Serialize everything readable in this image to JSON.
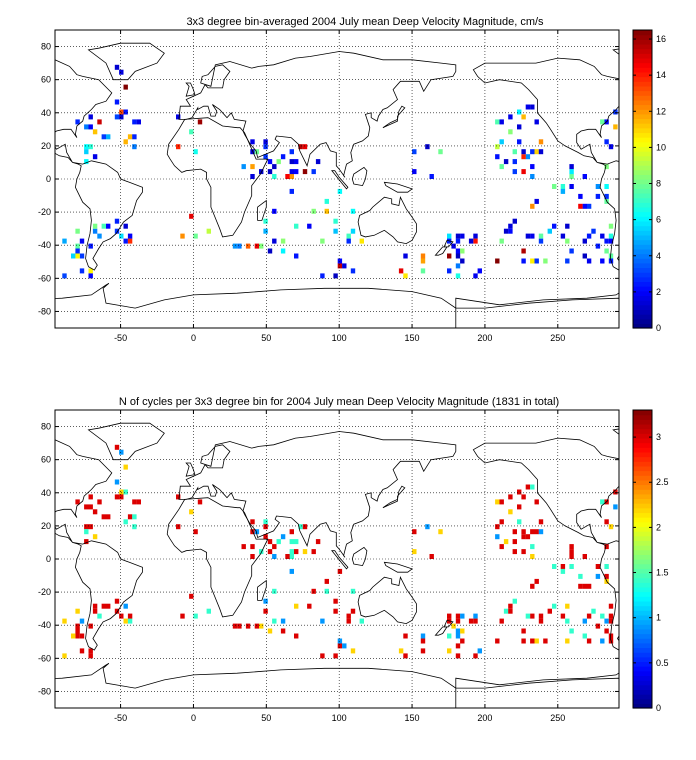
{
  "chart_data": [
    {
      "type": "heatmap",
      "title": "3x3 degree bin-averaged 2004 July mean Deep Velocity Magnitude, cm/s",
      "xlim": [
        -95,
        292
      ],
      "ylim": [
        -90,
        90
      ],
      "xticks": [
        -50,
        0,
        50,
        100,
        150,
        200,
        250
      ],
      "yticks": [
        -80,
        -60,
        -40,
        -20,
        0,
        20,
        40,
        60,
        80
      ],
      "grid": true,
      "colormap": "jet",
      "colorbar": {
        "range": [
          0,
          16.5
        ],
        "ticks": [
          0,
          2,
          4,
          6,
          8,
          10,
          12,
          14,
          16
        ]
      },
      "value_profile": "velocity"
    },
    {
      "type": "heatmap",
      "title": "N of cycles per 3x3 degree bin for 2004 July mean Deep Velocity Magnitude (1831 in total)",
      "xlim": [
        -95,
        292
      ],
      "ylim": [
        -90,
        90
      ],
      "xticks": [
        -50,
        0,
        50,
        100,
        150,
        200,
        250
      ],
      "yticks": [
        -80,
        -60,
        -40,
        -20,
        0,
        20,
        40,
        60,
        80
      ],
      "grid": true,
      "colormap": "jet",
      "colorbar": {
        "range": [
          0,
          3.3
        ],
        "ticks": [
          0,
          0.5,
          1,
          1.5,
          2,
          2.5,
          3
        ]
      },
      "value_profile": "cycles"
    }
  ],
  "clusters": [
    [
      -88,
      -70,
      -60,
      -30,
      14
    ],
    [
      -80,
      -62,
      10,
      40,
      16
    ],
    [
      -60,
      -35,
      15,
      42,
      12
    ],
    [
      -70,
      -40,
      -38,
      -26,
      12
    ],
    [
      -55,
      -45,
      40,
      70,
      5
    ],
    [
      -15,
      10,
      -35,
      -20,
      4
    ],
    [
      -20,
      5,
      10,
      40,
      5
    ],
    [
      35,
      90,
      0,
      25,
      30
    ],
    [
      40,
      110,
      -60,
      -5,
      25
    ],
    [
      20,
      60,
      -45,
      -35,
      6
    ],
    [
      100,
      120,
      -40,
      -20,
      3
    ],
    [
      140,
      160,
      -60,
      -45,
      6
    ],
    [
      170,
      200,
      -60,
      -30,
      18
    ],
    [
      190,
      290,
      -50,
      -25,
      40
    ],
    [
      200,
      240,
      5,
      45,
      30
    ],
    [
      230,
      285,
      -20,
      15,
      22
    ],
    [
      280,
      292,
      20,
      40,
      6
    ],
    [
      150,
      180,
      0,
      20,
      6
    ]
  ],
  "land": [
    [
      [
        -168,
        66
      ],
      [
        -160,
        70
      ],
      [
        -140,
        70
      ],
      [
        -125,
        70
      ],
      [
        -110,
        73
      ],
      [
        -95,
        72
      ],
      [
        -85,
        68
      ],
      [
        -80,
        63
      ],
      [
        -76,
        62
      ],
      [
        -65,
        60
      ],
      [
        -56,
        52
      ],
      [
        -60,
        47
      ],
      [
        -67,
        45
      ],
      [
        -70,
        42
      ],
      [
        -75,
        38
      ],
      [
        -76,
        35
      ],
      [
        -80,
        32
      ],
      [
        -81,
        27
      ],
      [
        -80,
        25
      ],
      [
        -84,
        30
      ],
      [
        -89,
        30
      ],
      [
        -94,
        29
      ],
      [
        -97,
        27
      ],
      [
        -97,
        22
      ],
      [
        -94,
        18
      ],
      [
        -88,
        21
      ],
      [
        -87,
        16
      ],
      [
        -83,
        10
      ],
      [
        -79,
        9
      ],
      [
        -77,
        8
      ],
      [
        -78,
        4
      ],
      [
        -80,
        0
      ],
      [
        -81,
        -5
      ],
      [
        -76,
        -14
      ],
      [
        -71,
        -18
      ],
      [
        -70,
        -25
      ],
      [
        -71,
        -33
      ],
      [
        -73,
        -40
      ],
      [
        -74,
        -48
      ],
      [
        -72,
        -53
      ],
      [
        -68,
        -55
      ],
      [
        -66,
        -52
      ],
      [
        -69,
        -48
      ],
      [
        -65,
        -42
      ],
      [
        -62,
        -38
      ],
      [
        -57,
        -36
      ],
      [
        -53,
        -33
      ],
      [
        -48,
        -26
      ],
      [
        -42,
        -22
      ],
      [
        -39,
        -13
      ],
      [
        -35,
        -8
      ],
      [
        -35,
        -5
      ],
      [
        -44,
        -2
      ],
      [
        -50,
        0
      ],
      [
        -52,
        4
      ],
      [
        -60,
        9
      ],
      [
        -70,
        11
      ],
      [
        -76,
        9
      ],
      [
        -83,
        10
      ],
      [
        -86,
        13
      ],
      [
        -92,
        14
      ],
      [
        -96,
        16
      ],
      [
        -105,
        20
      ],
      [
        -110,
        23
      ],
      [
        -115,
        30
      ],
      [
        -118,
        34
      ],
      [
        -124,
        40
      ],
      [
        -124,
        48
      ],
      [
        -130,
        54
      ],
      [
        -135,
        58
      ],
      [
        -150,
        60
      ],
      [
        -160,
        58
      ],
      [
        -165,
        62
      ],
      [
        -168,
        66
      ]
    ],
    [
      [
        -55,
        60
      ],
      [
        -45,
        60
      ],
      [
        -40,
        65
      ],
      [
        -25,
        70
      ],
      [
        -20,
        76
      ],
      [
        -30,
        82
      ],
      [
        -50,
        82
      ],
      [
        -65,
        79
      ],
      [
        -72,
        78
      ],
      [
        -60,
        70
      ],
      [
        -55,
        60
      ]
    ],
    [
      [
        -18,
        15
      ],
      [
        -17,
        21
      ],
      [
        -10,
        30
      ],
      [
        -6,
        36
      ],
      [
        10,
        37
      ],
      [
        20,
        32
      ],
      [
        30,
        31
      ],
      [
        32,
        31
      ],
      [
        35,
        28
      ],
      [
        43,
        12
      ],
      [
        51,
        12
      ],
      [
        46,
        3
      ],
      [
        40,
        -4
      ],
      [
        40,
        -10
      ],
      [
        35,
        -20
      ],
      [
        33,
        -26
      ],
      [
        27,
        -34
      ],
      [
        20,
        -35
      ],
      [
        18,
        -30
      ],
      [
        12,
        -17
      ],
      [
        12,
        -5
      ],
      [
        9,
        0
      ],
      [
        9,
        4
      ],
      [
        5,
        6
      ],
      [
        -5,
        5
      ],
      [
        -8,
        4
      ],
      [
        -13,
        8
      ],
      [
        -16,
        12
      ],
      [
        -18,
        15
      ]
    ],
    [
      [
        -10,
        36
      ],
      [
        -9,
        44
      ],
      [
        -2,
        44
      ],
      [
        -5,
        48
      ],
      [
        0,
        50
      ],
      [
        5,
        52
      ],
      [
        8,
        57
      ],
      [
        10,
        55
      ],
      [
        15,
        55
      ],
      [
        20,
        55
      ],
      [
        21,
        60
      ],
      [
        25,
        65
      ],
      [
        20,
        69
      ],
      [
        15,
        68
      ],
      [
        10,
        63
      ],
      [
        6,
        62
      ],
      [
        5,
        58
      ],
      [
        12,
        56
      ],
      [
        15,
        69
      ],
      [
        25,
        71
      ],
      [
        40,
        67
      ],
      [
        45,
        68
      ],
      [
        55,
        69
      ],
      [
        70,
        73
      ],
      [
        80,
        74
      ],
      [
        100,
        77
      ],
      [
        110,
        76
      ],
      [
        130,
        72
      ],
      [
        150,
        72
      ],
      [
        170,
        70
      ],
      [
        180,
        69
      ],
      [
        180,
        65
      ],
      [
        178,
        62
      ],
      [
        163,
        60
      ],
      [
        158,
        53
      ],
      [
        155,
        59
      ],
      [
        142,
        59
      ],
      [
        137,
        54
      ],
      [
        140,
        48
      ],
      [
        133,
        43
      ],
      [
        130,
        42
      ],
      [
        127,
        38
      ],
      [
        126,
        35
      ],
      [
        122,
        37
      ],
      [
        122,
        40
      ],
      [
        118,
        39
      ],
      [
        121,
        31
      ],
      [
        120,
        26
      ],
      [
        116,
        23
      ],
      [
        110,
        21
      ],
      [
        108,
        16
      ],
      [
        109,
        11
      ],
      [
        105,
        9
      ],
      [
        103,
        2
      ],
      [
        104,
        1
      ],
      [
        100,
        6
      ],
      [
        98,
        8
      ],
      [
        98,
        16
      ],
      [
        94,
        17
      ],
      [
        91,
        22
      ],
      [
        87,
        21
      ],
      [
        80,
        15
      ],
      [
        78,
        8
      ],
      [
        73,
        17
      ],
      [
        72,
        21
      ],
      [
        67,
        25
      ],
      [
        57,
        26
      ],
      [
        56,
        24
      ],
      [
        59,
        22
      ],
      [
        55,
        17
      ],
      [
        44,
        13
      ],
      [
        43,
        17
      ],
      [
        39,
        21
      ],
      [
        35,
        27
      ],
      [
        34,
        29
      ],
      [
        36,
        35
      ],
      [
        28,
        36
      ],
      [
        26,
        40
      ],
      [
        23,
        37
      ],
      [
        20,
        40
      ],
      [
        18,
        42
      ],
      [
        13,
        45
      ],
      [
        16,
        41
      ],
      [
        15,
        38
      ],
      [
        12,
        38
      ],
      [
        10,
        44
      ],
      [
        7,
        44
      ],
      [
        3,
        42
      ],
      [
        3,
        43
      ],
      [
        -1,
        37
      ],
      [
        -5,
        36
      ],
      [
        -10,
        36
      ]
    ],
    [
      [
        114,
        -22
      ],
      [
        113,
        -26
      ],
      [
        115,
        -34
      ],
      [
        118,
        -35
      ],
      [
        124,
        -34
      ],
      [
        131,
        -31
      ],
      [
        137,
        -35
      ],
      [
        140,
        -38
      ],
      [
        146,
        -39
      ],
      [
        150,
        -37
      ],
      [
        153,
        -32
      ],
      [
        153,
        -27
      ],
      [
        150,
        -23
      ],
      [
        146,
        -18
      ],
      [
        142,
        -11
      ],
      [
        141,
        -16
      ],
      [
        136,
        -15
      ],
      [
        136,
        -12
      ],
      [
        131,
        -11
      ],
      [
        127,
        -14
      ],
      [
        123,
        -17
      ],
      [
        121,
        -19
      ],
      [
        114,
        -22
      ]
    ],
    [
      [
        -5,
        50
      ],
      [
        -3,
        56
      ],
      [
        -5,
        58
      ],
      [
        -2,
        58
      ],
      [
        0,
        54
      ],
      [
        1,
        51
      ],
      [
        -5,
        50
      ]
    ],
    [
      [
        44,
        -25
      ],
      [
        44,
        -17
      ],
      [
        47,
        -15
      ],
      [
        50,
        -13
      ],
      [
        50,
        -17
      ],
      [
        47,
        -25
      ],
      [
        44,
        -25
      ]
    ],
    [
      [
        95,
        5
      ],
      [
        105,
        -6
      ],
      [
        106,
        -5
      ],
      [
        100,
        1
      ],
      [
        97,
        5
      ],
      [
        95,
        5
      ]
    ],
    [
      [
        109,
        0
      ],
      [
        110,
        3
      ],
      [
        117,
        7
      ],
      [
        119,
        5
      ],
      [
        118,
        0
      ],
      [
        116,
        -4
      ],
      [
        110,
        -3
      ],
      [
        109,
        0
      ]
    ],
    [
      [
        131,
        -2
      ],
      [
        140,
        -3
      ],
      [
        150,
        -6
      ],
      [
        147,
        -8
      ],
      [
        140,
        -8
      ],
      [
        132,
        -4
      ],
      [
        131,
        -2
      ]
    ],
    [
      [
        130,
        31
      ],
      [
        135,
        34
      ],
      [
        140,
        36
      ],
      [
        141,
        41
      ],
      [
        143,
        44
      ],
      [
        145,
        43
      ],
      [
        140,
        38
      ],
      [
        140,
        35
      ],
      [
        135,
        33
      ],
      [
        130,
        31
      ]
    ],
    [
      [
        172,
        -41
      ],
      [
        174,
        -37
      ],
      [
        178,
        -38
      ],
      [
        175,
        -41
      ],
      [
        172,
        -41
      ]
    ],
    [
      [
        168,
        -46
      ],
      [
        171,
        -45
      ],
      [
        174,
        -41
      ],
      [
        171,
        -41
      ],
      [
        166,
        -46
      ],
      [
        168,
        -46
      ]
    ],
    [
      [
        -180,
        -72
      ],
      [
        -150,
        -76
      ],
      [
        -120,
        -73
      ],
      [
        -90,
        -72
      ],
      [
        -70,
        -70
      ],
      [
        -60,
        -64
      ],
      [
        -58,
        -63
      ],
      [
        -62,
        -66
      ],
      [
        -60,
        -75
      ],
      [
        -40,
        -78
      ],
      [
        -20,
        -73
      ],
      [
        0,
        -70
      ],
      [
        30,
        -69
      ],
      [
        60,
        -67
      ],
      [
        90,
        -66
      ],
      [
        120,
        -66
      ],
      [
        150,
        -68
      ],
      [
        170,
        -72
      ],
      [
        180,
        -78
      ],
      [
        200,
        -78
      ],
      [
        230,
        -75
      ],
      [
        260,
        -73
      ],
      [
        292,
        -72
      ],
      [
        292,
        -90
      ],
      [
        -180,
        -90
      ],
      [
        -180,
        -72
      ]
    ]
  ]
}
